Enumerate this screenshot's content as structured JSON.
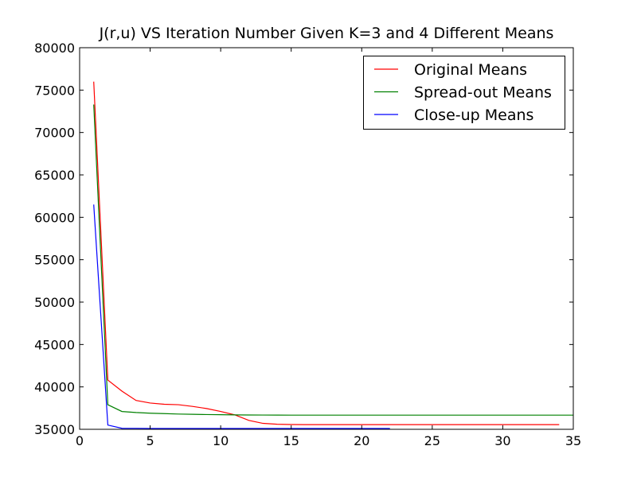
{
  "chart_data": {
    "type": "line",
    "title": "J(r,u) VS Iteration Number Given K=3 and 4 Different Means",
    "xlabel": "",
    "ylabel": "",
    "xlim": [
      0,
      35
    ],
    "ylim": [
      35000,
      80000
    ],
    "xticks": [
      0,
      5,
      10,
      15,
      20,
      25,
      30,
      35
    ],
    "yticks": [
      35000,
      40000,
      45000,
      50000,
      55000,
      60000,
      65000,
      70000,
      75000,
      80000
    ],
    "grid": false,
    "legend_position": "top-right",
    "series": [
      {
        "name": "Original Means",
        "color": "#ff0000",
        "x": [
          1,
          2,
          3,
          4,
          5,
          6,
          7,
          8,
          9,
          10,
          11,
          12,
          13,
          14,
          15,
          16,
          17,
          18,
          19,
          20,
          21,
          22,
          23,
          24,
          25,
          26,
          27,
          28,
          29,
          30,
          31,
          32,
          33,
          34
        ],
        "y": [
          76000,
          40800,
          39500,
          38400,
          38100,
          37950,
          37900,
          37700,
          37450,
          37100,
          36700,
          36050,
          35700,
          35600,
          35560,
          35550,
          35550,
          35550,
          35550,
          35550,
          35550,
          35550,
          35550,
          35550,
          35550,
          35550,
          35550,
          35550,
          35550,
          35550,
          35550,
          35550,
          35550,
          35550
        ]
      },
      {
        "name": "Spread-out Means",
        "color": "#008000",
        "x": [
          1,
          2,
          3,
          4,
          5,
          6,
          7,
          8,
          9,
          10,
          11,
          12,
          13,
          14,
          15,
          16,
          17,
          18,
          19,
          20,
          21,
          22,
          23,
          24,
          25,
          26,
          27,
          28,
          29,
          30,
          31,
          32,
          33,
          34,
          35
        ],
        "y": [
          73300,
          37900,
          37100,
          36980,
          36900,
          36850,
          36800,
          36770,
          36740,
          36720,
          36700,
          36690,
          36680,
          36675,
          36670,
          36670,
          36670,
          36670,
          36670,
          36670,
          36670,
          36670,
          36670,
          36670,
          36670,
          36670,
          36670,
          36670,
          36670,
          36670,
          36670,
          36670,
          36670,
          36670,
          36670
        ]
      },
      {
        "name": "Close-up Means",
        "color": "#0000ff",
        "x": [
          1,
          2,
          3,
          4,
          5,
          6,
          7,
          8,
          9,
          10,
          11,
          12,
          13,
          14,
          15,
          16,
          17,
          18,
          19,
          20,
          21,
          22
        ],
        "y": [
          61500,
          35500,
          35120,
          35110,
          35100,
          35100,
          35100,
          35100,
          35100,
          35100,
          35100,
          35100,
          35100,
          35100,
          35100,
          35100,
          35100,
          35100,
          35100,
          35100,
          35100,
          35100
        ]
      }
    ]
  }
}
